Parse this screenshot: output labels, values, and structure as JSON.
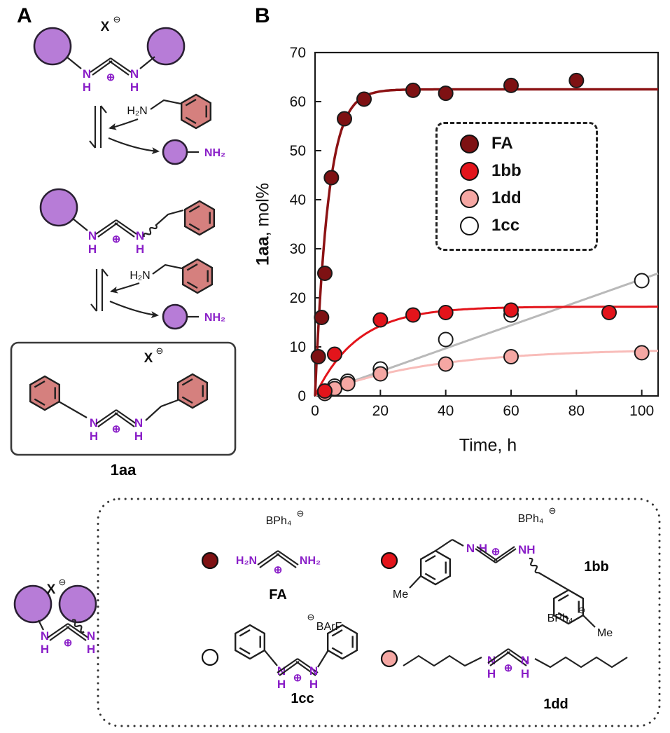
{
  "panels": {
    "a_label": "A",
    "b_label": "B"
  },
  "glyphs": {
    "N": "N",
    "H": "H",
    "X": "X",
    "oplus": "⊕",
    "ominus": "⊖",
    "H2N": "H₂N",
    "NH2": "NH₂",
    "NH": "NH",
    "Me": "Me",
    "BPh4": "BPh₄",
    "BArF": "BArF"
  },
  "labels": {
    "aa": "1aa",
    "fa": "FA",
    "bb": "1bb",
    "cc": "1cc",
    "dd": "1dd"
  },
  "chart_data": {
    "type": "scatter",
    "title": "",
    "xlabel": "Time, h",
    "ylabel_bold": "1aa",
    "ylabel_rest": ", mol%",
    "xlim": [
      0,
      105
    ],
    "ylim": [
      0,
      70
    ],
    "xticks": [
      0,
      20,
      40,
      60,
      80,
      100
    ],
    "yticks": [
      0,
      10,
      20,
      30,
      40,
      50,
      60,
      70
    ],
    "grid": false,
    "legend": {
      "position": "upper right",
      "order": [
        "FA",
        "1bb",
        "1dd",
        "1cc"
      ]
    },
    "series": [
      {
        "name": "FA",
        "marker_color": "#7e1113",
        "line_color": "#8c1214",
        "line_width": 3.5,
        "x": [
          1,
          2,
          3,
          5,
          9,
          15,
          30,
          40,
          60,
          80
        ],
        "y": [
          8,
          16,
          25,
          44.5,
          56.5,
          60.5,
          62.3,
          61.7,
          63.3,
          64.3
        ],
        "fit": {
          "kind": "exp",
          "plateau": 62.5,
          "tau": 4
        }
      },
      {
        "name": "1bb",
        "marker_color": "#e3141b",
        "line_color": "#e3141b",
        "line_width": 3,
        "x": [
          3,
          6,
          20,
          30,
          40,
          60,
          90
        ],
        "y": [
          1,
          8.5,
          15.5,
          16.5,
          17,
          17.5,
          17
        ],
        "fit": {
          "kind": "exp",
          "plateau": 18.2,
          "tau": 13
        }
      },
      {
        "name": "1dd",
        "marker_color": "#f5a7a3",
        "line_color": "#f8bcb9",
        "line_width": 3,
        "x": [
          3,
          6,
          10,
          20,
          40,
          60,
          100
        ],
        "y": [
          0.5,
          1.5,
          2.5,
          4.5,
          6.5,
          8,
          8.8
        ],
        "fit": {
          "kind": "exp",
          "plateau": 9.6,
          "tau": 33
        }
      },
      {
        "name": "1cc",
        "marker_color": "#ffffff",
        "line_color": "#b9b9b9",
        "line_width": 3,
        "x": [
          6,
          10,
          20,
          40,
          60,
          100
        ],
        "y": [
          2,
          3,
          5.5,
          11.5,
          16.5,
          23.5
        ],
        "fit": {
          "kind": "linear",
          "slope": 0.235,
          "intercept": 0.3
        }
      }
    ]
  }
}
